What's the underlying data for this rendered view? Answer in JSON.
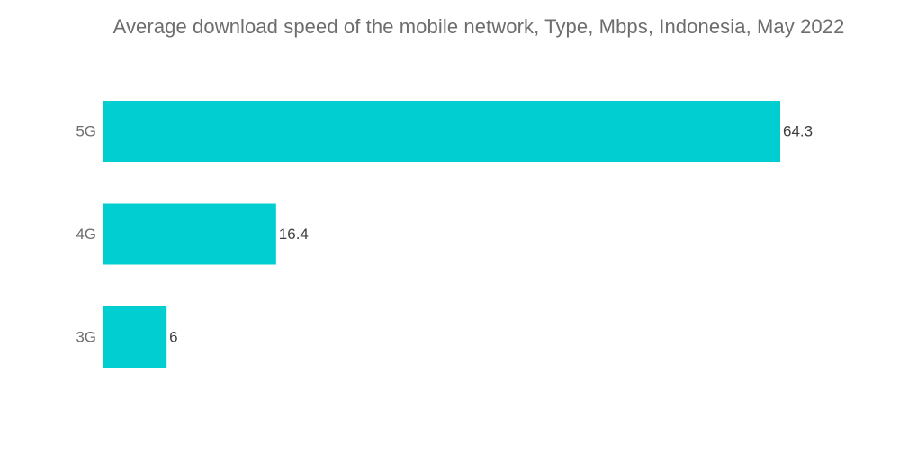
{
  "chart_data": {
    "type": "bar",
    "orientation": "horizontal",
    "title": "Average download speed of the mobile network, Type, Mbps, Indonesia, May 2022",
    "categories": [
      "5G",
      "4G",
      "3G"
    ],
    "values": [
      64.3,
      16.4,
      6
    ],
    "value_labels": [
      "64.3",
      "16.4",
      "6"
    ],
    "xlabel": "",
    "ylabel": "",
    "grid": false,
    "legend": "none",
    "bar_color": "#00ced1"
  }
}
